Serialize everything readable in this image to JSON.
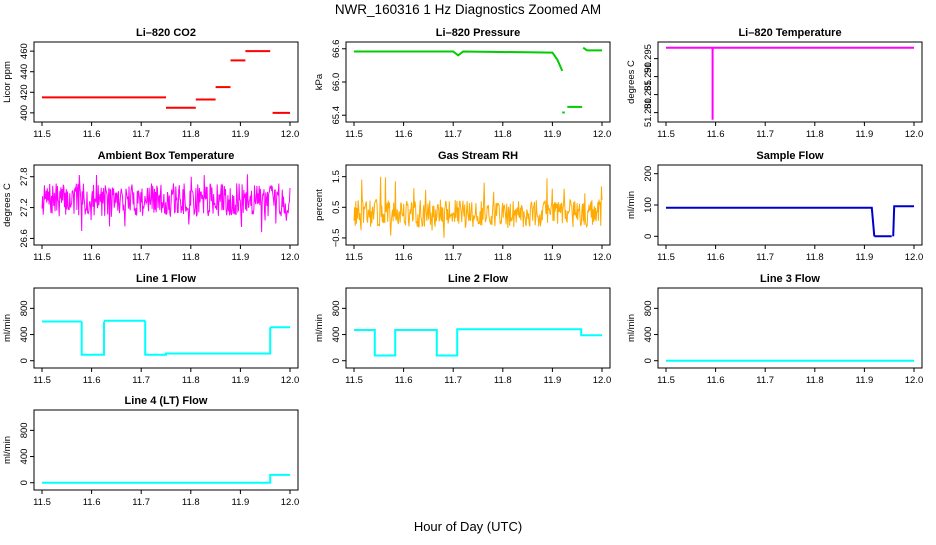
{
  "main_title": "NWR_160316  1 Hz Diagnostics Zoomed AM",
  "x_axis_title": "Hour of Day (UTC)",
  "x_ticks": [
    "11.5",
    "11.6",
    "11.7",
    "11.8",
    "11.9",
    "12.0"
  ],
  "chart_data": [
    {
      "id": "co2",
      "type": "line",
      "title": "Li–820 CO2",
      "ylabel": "Licor ppm",
      "color": "#ff0000",
      "xlim": [
        11.5,
        12.0
      ],
      "ylim": [
        395,
        465
      ],
      "yticks": [
        400,
        420,
        440,
        460
      ],
      "ytick_labels": [
        "400",
        "420",
        "440",
        "460"
      ],
      "segments": [
        {
          "x": [
            11.5,
            11.75
          ],
          "y": [
            415,
            415
          ]
        },
        {
          "x": [
            11.75,
            11.81
          ],
          "y": [
            405,
            405
          ]
        },
        {
          "x": [
            11.81,
            11.85
          ],
          "y": [
            413,
            413
          ]
        },
        {
          "x": [
            11.85,
            11.88
          ],
          "y": [
            425,
            425
          ]
        },
        {
          "x": [
            11.88,
            11.91
          ],
          "y": [
            451,
            451
          ]
        },
        {
          "x": [
            11.91,
            11.96
          ],
          "y": [
            460,
            460
          ]
        },
        {
          "x": [
            11.965,
            12.0
          ],
          "y": [
            400,
            400
          ]
        }
      ]
    },
    {
      "id": "pressure",
      "type": "line",
      "title": "Li–820 Pressure",
      "ylabel": "kPa",
      "color": "#00cc00",
      "xlim": [
        11.5,
        12.0
      ],
      "ylim": [
        65.35,
        66.65
      ],
      "yticks": [
        65.4,
        66.0,
        66.6
      ],
      "ytick_labels": [
        "65.4",
        "66.0",
        "66.6"
      ],
      "segments": [
        {
          "x": [
            11.5,
            11.7,
            11.71,
            11.72,
            11.9,
            11.91,
            11.92
          ],
          "y": [
            66.55,
            66.55,
            66.48,
            66.55,
            66.53,
            66.4,
            66.2
          ]
        },
        {
          "x": [
            11.92,
            11.925
          ],
          "y": [
            65.45,
            65.45
          ]
        },
        {
          "x": [
            11.93,
            11.96
          ],
          "y": [
            65.55,
            65.55
          ]
        },
        {
          "x": [
            11.962,
            11.97,
            12.0
          ],
          "y": [
            66.62,
            66.57,
            66.57
          ]
        }
      ]
    },
    {
      "id": "temperature",
      "type": "line",
      "title": "Li–820 Temperature",
      "ylabel": "degrees C",
      "color": "#ff00ff",
      "xlim": [
        11.5,
        12.0
      ],
      "ylim": [
        51.2785,
        51.2985
      ],
      "yticks": [
        51.28,
        51.285,
        51.29,
        51.295
      ],
      "ytick_labels": [
        "51.280",
        "51.285",
        "51.290",
        "51.295"
      ],
      "segments": [
        {
          "x": [
            11.5,
            12.0
          ],
          "y": [
            51.298,
            51.298
          ]
        },
        {
          "x": [
            11.594,
            11.594
          ],
          "y": [
            51.298,
            51.278
          ]
        }
      ]
    },
    {
      "id": "ambient",
      "type": "noise",
      "title": "Ambient Box Temperature",
      "ylabel": "degrees C",
      "color": "#ff00ff",
      "xlim": [
        11.5,
        12.0
      ],
      "ylim": [
        26.55,
        27.95
      ],
      "yticks": [
        26.6,
        27.2,
        27.8
      ],
      "ytick_labels": [
        "26.6",
        "27.2",
        "27.8"
      ],
      "noise": {
        "center": 27.35,
        "amplitude": 0.32,
        "spike_low": 26.7,
        "spike_high": 27.9,
        "seed": 7
      }
    },
    {
      "id": "rh",
      "type": "noise",
      "title": "Gas Stream RH",
      "ylabel": "percent",
      "color": "#ffaa00",
      "xlim": [
        11.5,
        12.0
      ],
      "ylim": [
        -0.6,
        1.75
      ],
      "yticks": [
        -0.5,
        0.5,
        1.5
      ],
      "ytick_labels": [
        "−0.5",
        "0.5",
        "1.5"
      ],
      "noise": {
        "center": 0.3,
        "amplitude": 0.45,
        "spike_low": -0.6,
        "spike_high": 1.5,
        "seed": 13
      }
    },
    {
      "id": "sample_flow",
      "type": "line",
      "title": "Sample Flow",
      "ylabel": "ml/min",
      "color": "#0000cc",
      "xlim": [
        11.5,
        12.0
      ],
      "ylim": [
        -15,
        215
      ],
      "yticks": [
        0,
        100,
        200
      ],
      "ytick_labels": [
        "0",
        "100",
        "200"
      ],
      "segments": [
        {
          "x": [
            11.5,
            11.915,
            11.92
          ],
          "y": [
            91,
            91,
            0
          ]
        },
        {
          "x": [
            11.92,
            11.955
          ],
          "y": [
            0,
            0
          ]
        },
        {
          "x": [
            11.958,
            11.96,
            12.0
          ],
          "y": [
            0,
            96,
            96
          ]
        }
      ]
    },
    {
      "id": "line1",
      "type": "line",
      "title": "Line 1 Flow",
      "ylabel": "ml/min",
      "color": "#00ffff",
      "xlim": [
        11.5,
        12.0
      ],
      "ylim": [
        -50,
        1050
      ],
      "yticks": [
        0,
        400,
        800
      ],
      "ytick_labels": [
        "0",
        "400",
        "800"
      ],
      "segments": [
        {
          "x": [
            11.5,
            11.58
          ],
          "y": [
            600,
            600
          ]
        },
        {
          "x": [
            11.58,
            11.58,
            11.625,
            11.625
          ],
          "y": [
            600,
            90,
            90,
            600
          ]
        },
        {
          "x": [
            11.625,
            11.708
          ],
          "y": [
            610,
            610
          ]
        },
        {
          "x": [
            11.708,
            11.708,
            11.75,
            11.75,
            11.96,
            11.96
          ],
          "y": [
            610,
            90,
            90,
            110,
            110,
            510
          ]
        },
        {
          "x": [
            11.96,
            12.0
          ],
          "y": [
            510,
            510
          ]
        }
      ]
    },
    {
      "id": "line2",
      "type": "line",
      "title": "Line 2 Flow",
      "ylabel": "ml/min",
      "color": "#00ffff",
      "xlim": [
        11.5,
        12.0
      ],
      "ylim": [
        -50,
        1050
      ],
      "yticks": [
        0,
        400,
        800
      ],
      "ytick_labels": [
        "0",
        "400",
        "800"
      ],
      "segments": [
        {
          "x": [
            11.5,
            11.542,
            11.542,
            11.583,
            11.583,
            11.667,
            11.667,
            11.708,
            11.708,
            11.958,
            11.958,
            12.0
          ],
          "y": [
            470,
            470,
            80,
            80,
            470,
            470,
            80,
            80,
            480,
            480,
            390,
            390
          ]
        }
      ]
    },
    {
      "id": "line3",
      "type": "line",
      "title": "Line 3 Flow",
      "ylabel": "ml/min",
      "color": "#00ffff",
      "xlim": [
        11.5,
        12.0
      ],
      "ylim": [
        -50,
        1050
      ],
      "yticks": [
        0,
        400,
        800
      ],
      "ytick_labels": [
        "0",
        "400",
        "800"
      ],
      "segments": [
        {
          "x": [
            11.5,
            12.0
          ],
          "y": [
            0,
            0
          ]
        }
      ]
    },
    {
      "id": "line4",
      "type": "line",
      "title": "Line 4 (LT) Flow",
      "ylabel": "ml/min",
      "color": "#00ffff",
      "xlim": [
        11.5,
        12.0
      ],
      "ylim": [
        -50,
        1050
      ],
      "yticks": [
        0,
        400,
        800
      ],
      "ytick_labels": [
        "0",
        "400",
        "800"
      ],
      "segments": [
        {
          "x": [
            11.5,
            11.96,
            11.96,
            12.0
          ],
          "y": [
            0,
            0,
            120,
            120
          ]
        }
      ]
    }
  ]
}
